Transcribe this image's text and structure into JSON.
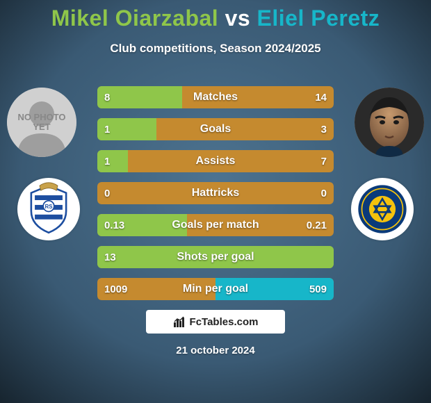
{
  "title_parts": {
    "player1": "Mikel Oiarzabal",
    "vs": "vs",
    "player2": "Eliel Peretz"
  },
  "title_colors": {
    "player1": "#8fc64a",
    "vs": "#ffffff",
    "player2": "#17b6c9"
  },
  "subtitle": "Club competitions, Season 2024/2025",
  "background": {
    "color_top": "#16232d",
    "color_bottom": "#3a5a74",
    "radial_center": "#4d7390"
  },
  "avatars": {
    "left_placeholder_line1": "NO PHOTO",
    "left_placeholder_line2": "YET",
    "right_face_bg": "#8c6a4a"
  },
  "clubs": {
    "left_name": "real-sociedad-crest",
    "left_colors": {
      "main": "#1d4ea0",
      "accent": "#ffffff",
      "gold": "#c9a24a"
    },
    "right_name": "maccabi-tel-aviv-crest",
    "right_colors": {
      "main": "#0a3a7a",
      "accent": "#f4c20d"
    }
  },
  "bars": {
    "track_color": "#c58a2f",
    "left_fill_color": "#8fc64a",
    "right_fill_color": "#17b6c9",
    "rows": [
      {
        "label": "Matches",
        "left_val": "8",
        "right_val": "14",
        "left_pct": 36,
        "right_pct": 0
      },
      {
        "label": "Goals",
        "left_val": "1",
        "right_val": "3",
        "left_pct": 25,
        "right_pct": 0
      },
      {
        "label": "Assists",
        "left_val": "1",
        "right_val": "7",
        "left_pct": 13,
        "right_pct": 0
      },
      {
        "label": "Hattricks",
        "left_val": "0",
        "right_val": "0",
        "left_pct": 0,
        "right_pct": 0
      },
      {
        "label": "Goals per match",
        "left_val": "0.13",
        "right_val": "0.21",
        "left_pct": 38,
        "right_pct": 0
      },
      {
        "label": "Shots per goal",
        "left_val": "13",
        "right_val": "",
        "left_pct": 100,
        "right_pct": 0
      },
      {
        "label": "Min per goal",
        "left_val": "1009",
        "right_val": "509",
        "left_pct": 0,
        "right_pct": 50
      }
    ]
  },
  "watermark": "FcTables.com",
  "date": "21 october 2024"
}
